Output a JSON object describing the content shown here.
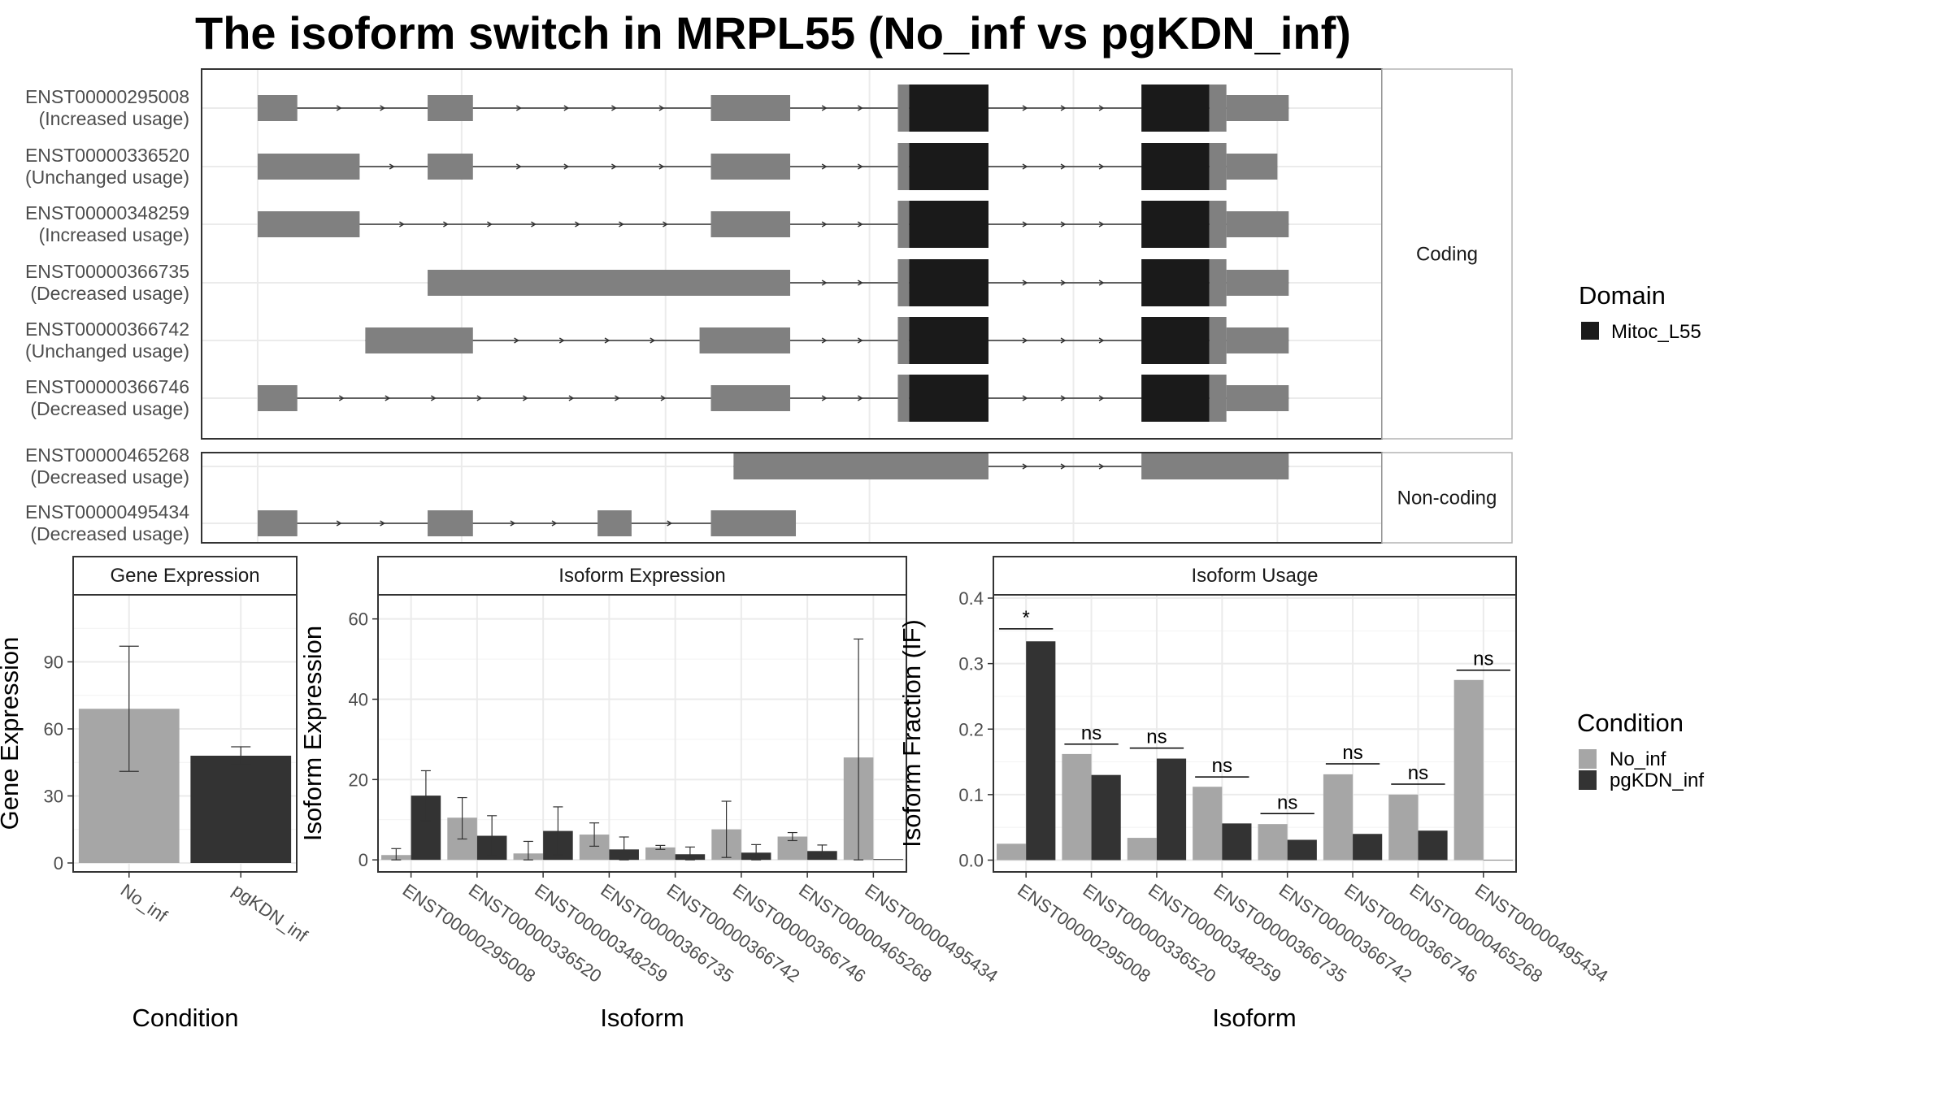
{
  "title": "The isoform switch in MRPL55 (No_inf vs pgKDN_inf)",
  "colors": {
    "exon": "#808080",
    "domain": "#1a1a1a",
    "no_inf": "#a6a6a6",
    "pgkdn_inf": "#333333",
    "grid": "#ebebeb",
    "panel_border": "#333333",
    "strip_fill": "#ffffff"
  },
  "chart_data": [
    {
      "type": "gene-structure",
      "panels": [
        {
          "strip": "Coding",
          "transcripts": [
            {
              "id": "ENST00000295008",
              "status": "(Increased usage)",
              "exons": [
                [
                  0,
                  35,
                  "utr"
                ],
                [
                  150,
                  190,
                  "utr"
                ],
                [
                  400,
                  470,
                  "utr"
                ],
                [
                  565,
                  575,
                  "utr"
                ],
                [
                  575,
                  645,
                  "domain"
                ],
                [
                  780,
                  840,
                  "domain"
                ],
                [
                  840,
                  855,
                  "utr"
                ],
                [
                  855,
                  910,
                  "utr"
                ]
              ]
            },
            {
              "id": "ENST00000336520",
              "status": "(Unchanged usage)",
              "exons": [
                [
                  0,
                  90,
                  "utr"
                ],
                [
                  150,
                  190,
                  "utr"
                ],
                [
                  400,
                  470,
                  "utr"
                ],
                [
                  565,
                  575,
                  "utr"
                ],
                [
                  575,
                  645,
                  "domain"
                ],
                [
                  780,
                  840,
                  "domain"
                ],
                [
                  840,
                  855,
                  "utr"
                ],
                [
                  855,
                  900,
                  "utr"
                ]
              ]
            },
            {
              "id": "ENST00000348259",
              "status": "(Increased usage)",
              "exons": [
                [
                  0,
                  90,
                  "utr"
                ],
                [
                  400,
                  470,
                  "utr"
                ],
                [
                  565,
                  575,
                  "utr"
                ],
                [
                  575,
                  645,
                  "domain"
                ],
                [
                  780,
                  840,
                  "domain"
                ],
                [
                  840,
                  855,
                  "utr"
                ],
                [
                  855,
                  910,
                  "utr"
                ]
              ]
            },
            {
              "id": "ENST00000366735",
              "status": "(Decreased usage)",
              "exons": [
                [
                  150,
                  470,
                  "utr"
                ],
                [
                  565,
                  575,
                  "utr"
                ],
                [
                  575,
                  645,
                  "domain"
                ],
                [
                  780,
                  840,
                  "domain"
                ],
                [
                  840,
                  855,
                  "utr"
                ],
                [
                  855,
                  910,
                  "utr"
                ]
              ]
            },
            {
              "id": "ENST00000366742",
              "status": "(Unchanged usage)",
              "exons": [
                [
                  95,
                  190,
                  "utr"
                ],
                [
                  390,
                  470,
                  "utr"
                ],
                [
                  565,
                  575,
                  "utr"
                ],
                [
                  575,
                  645,
                  "domain"
                ],
                [
                  780,
                  840,
                  "domain"
                ],
                [
                  840,
                  855,
                  "utr"
                ],
                [
                  855,
                  910,
                  "utr"
                ]
              ]
            },
            {
              "id": "ENST00000366746",
              "status": "(Decreased usage)",
              "exons": [
                [
                  0,
                  35,
                  "utr"
                ],
                [
                  400,
                  470,
                  "utr"
                ],
                [
                  565,
                  575,
                  "utr"
                ],
                [
                  575,
                  645,
                  "domain"
                ],
                [
                  780,
                  840,
                  "domain"
                ],
                [
                  840,
                  855,
                  "utr"
                ],
                [
                  855,
                  910,
                  "utr"
                ]
              ]
            }
          ]
        },
        {
          "strip": "Non-coding",
          "transcripts": [
            {
              "id": "ENST00000465268",
              "status": "(Decreased usage)",
              "exons": [
                [
                  420,
                  645,
                  "nc"
                ],
                [
                  780,
                  910,
                  "nc"
                ]
              ]
            },
            {
              "id": "ENST00000495434",
              "status": "(Decreased usage)",
              "exons": [
                [
                  0,
                  35,
                  "nc"
                ],
                [
                  150,
                  190,
                  "nc"
                ],
                [
                  300,
                  330,
                  "nc"
                ],
                [
                  400,
                  475,
                  "nc"
                ]
              ]
            }
          ]
        }
      ],
      "legend": {
        "title": "Domain",
        "items": [
          "Mitoc_L55"
        ]
      }
    },
    {
      "type": "bar",
      "strip": "Gene Expression",
      "xlabel": "Condition",
      "ylabel": "Gene Expression",
      "ylim": [
        -4,
        120
      ],
      "yticks": [
        0,
        30,
        60,
        90
      ],
      "categories": [
        "No_inf",
        "pgKDN_inf"
      ],
      "values": [
        69,
        48
      ],
      "errors": [
        [
          41,
          97
        ],
        [
          44,
          52
        ]
      ]
    },
    {
      "type": "bar",
      "strip": "Isoform Expression",
      "xlabel": "Isoform",
      "ylabel": "Isoform Expression",
      "ylim": [
        -3,
        66
      ],
      "yticks": [
        0,
        20,
        40,
        60
      ],
      "categories": [
        "ENST00000295008",
        "ENST00000336520",
        "ENST00000348259",
        "ENST00000366735",
        "ENST00000366742",
        "ENST00000366746",
        "ENST00000465268",
        "ENST00000495434"
      ],
      "series": [
        {
          "name": "No_inf",
          "values": [
            1.2,
            10.5,
            1.6,
            6.3,
            3.1,
            7.6,
            5.8,
            25.5
          ],
          "errors": [
            [
              0,
              2.8
            ],
            [
              5.2,
              15.5
            ],
            [
              0,
              4.6
            ],
            [
              3.4,
              9.2
            ],
            [
              2.6,
              3.6
            ],
            [
              0.6,
              14.6
            ],
            [
              4.8,
              6.8
            ],
            [
              0,
              55
            ]
          ]
        },
        {
          "name": "pgKDN_inf",
          "values": [
            16,
            6,
            7.2,
            2.6,
            1.4,
            1.8,
            2.2,
            0.2
          ],
          "errors": [
            [
              9.8,
              22.2
            ],
            [
              1,
              11
            ],
            [
              1.3,
              13.2
            ],
            [
              0,
              5.7
            ],
            [
              0,
              3.2
            ],
            [
              0,
              3.8
            ],
            [
              0.7,
              3.7
            ],
            null
          ]
        }
      ]
    },
    {
      "type": "bar",
      "strip": "Isoform Usage",
      "xlabel": "Isoform",
      "ylabel": "Isoform Fraction (IF)",
      "ylim": [
        -0.018,
        0.405
      ],
      "yticks": [
        0.0,
        0.1,
        0.2,
        0.3,
        0.4
      ],
      "ytick_labels": [
        "0.0",
        "0.1",
        "0.2",
        "0.3",
        "0.4"
      ],
      "categories": [
        "ENST00000295008",
        "ENST00000336520",
        "ENST00000348259",
        "ENST00000366735",
        "ENST00000366742",
        "ENST00000366746",
        "ENST00000465268",
        "ENST00000495434"
      ],
      "series": [
        {
          "name": "No_inf",
          "values": [
            0.025,
            0.162,
            0.034,
            0.112,
            0.055,
            0.131,
            0.1,
            0.275
          ]
        },
        {
          "name": "pgKDN_inf",
          "values": [
            0.334,
            0.13,
            0.155,
            0.056,
            0.031,
            0.04,
            0.045,
            0.0
          ]
        }
      ],
      "significance": [
        {
          "label": "*",
          "y": 0.353
        },
        {
          "label": "ns",
          "y": 0.177
        },
        {
          "label": "ns",
          "y": 0.171
        },
        {
          "label": "ns",
          "y": 0.127
        },
        {
          "label": "ns",
          "y": 0.071
        },
        {
          "label": "ns",
          "y": 0.147
        },
        {
          "label": "ns",
          "y": 0.116
        },
        {
          "label": "ns",
          "y": 0.29
        }
      ]
    }
  ],
  "legend_condition": {
    "title": "Condition",
    "items": [
      "No_inf",
      "pgKDN_inf"
    ]
  }
}
